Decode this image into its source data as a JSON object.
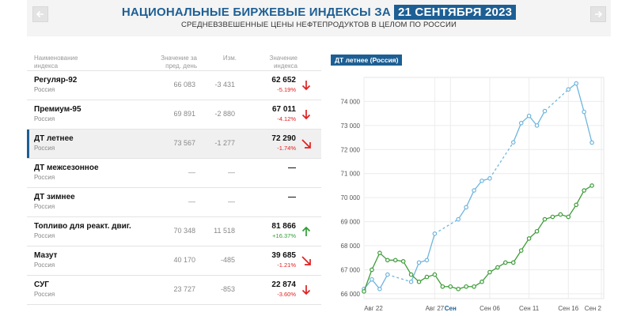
{
  "header": {
    "title": "НАЦИОНАЛЬНЫЕ БИРЖЕВЫЕ ИНДЕКСЫ ЗА",
    "date": "21 СЕНТЯБРЯ 2023",
    "subtitle": "СРЕДНЕВЗВЕШЕННЫЕ ЦЕНЫ НЕФТЕПРОДУКТОВ В ЦЕЛОМ ПО РОССИИ"
  },
  "table": {
    "headers": {
      "name_line1": "Наименование",
      "name_line2": "индекса",
      "prev_line1": "Значение за",
      "prev_line2": "пред. день",
      "chg": "Изм.",
      "val_line1": "Значение",
      "val_line2": "индекса"
    },
    "rows": [
      {
        "name": "Регуляр-92",
        "region": "Россия",
        "prev": "66 083",
        "chg": "-3 431",
        "value": "62 652",
        "pct": "-5.19%",
        "dir": "down",
        "arrow": "arrow-down-icon",
        "active": false
      },
      {
        "name": "Премиум-95",
        "region": "Россия",
        "prev": "69 891",
        "chg": "-2 880",
        "value": "67 011",
        "pct": "-4.12%",
        "dir": "down",
        "arrow": "arrow-down-icon",
        "active": false
      },
      {
        "name": "ДТ летнее",
        "region": "Россия",
        "prev": "73 567",
        "chg": "-1 277",
        "value": "72 290",
        "pct": "-1.74%",
        "dir": "down-right",
        "arrow": "arrow-down-right-icon",
        "active": true
      },
      {
        "name": "ДТ межсезонное",
        "region": "Россия",
        "prev": "—",
        "chg": "—",
        "value": "—",
        "pct": "",
        "dir": "none",
        "arrow": "",
        "active": false
      },
      {
        "name": "ДТ зимнее",
        "region": "Россия",
        "prev": "—",
        "chg": "—",
        "value": "—",
        "pct": "",
        "dir": "none",
        "arrow": "",
        "active": false
      },
      {
        "name": "Топливо для реакт. двиг.",
        "region": "Россия",
        "prev": "70 348",
        "chg": "11 518",
        "value": "81 866",
        "pct": "+16.37%",
        "dir": "up",
        "arrow": "arrow-up-icon",
        "active": false
      },
      {
        "name": "Мазут",
        "region": "Россия",
        "prev": "40 170",
        "chg": "-485",
        "value": "39 685",
        "pct": "-1.21%",
        "dir": "down-right",
        "arrow": "arrow-down-right-icon",
        "active": false
      },
      {
        "name": "СУГ",
        "region": "Россия",
        "prev": "23 727",
        "chg": "-853",
        "value": "22 874",
        "pct": "-3.60%",
        "dir": "down",
        "arrow": "arrow-down-icon",
        "active": false
      }
    ]
  },
  "chart_data": {
    "type": "line",
    "title": "ДТ летнее (Россия)",
    "tag": "ДТ летнее (Россия)",
    "x_tick_labels": [
      "Авг 22",
      "Авг 27",
      "Сен",
      "Сен 06",
      "Сен 11",
      "Сен 16",
      "Сен 2"
    ],
    "y_ticks": [
      66000,
      67000,
      68000,
      69000,
      70000,
      71000,
      72000,
      73000,
      74000
    ],
    "y_tick_labels": [
      "66 000",
      "67 000",
      "68 000",
      "69 000",
      "70 000",
      "71 000",
      "72 000",
      "73 000",
      "74 000"
    ],
    "ylim": [
      65800,
      75000
    ],
    "xlim": [
      0,
      30.5
    ],
    "grid": true,
    "colors": {
      "blue": "#6fb5dd",
      "green": "#3e9c3a"
    },
    "series": [
      {
        "color": "blue",
        "points": [
          {
            "x": 0,
            "y": 66200
          },
          {
            "x": 1,
            "y": 66600
          },
          {
            "x": 2,
            "y": 66200
          },
          {
            "x": 3,
            "y": 66800
          },
          {
            "x": 6,
            "y": 66500
          },
          {
            "x": 7,
            "y": 67300
          },
          {
            "x": 8,
            "y": 67400
          },
          {
            "x": 9,
            "y": 68500
          },
          {
            "x": 12,
            "y": 69100
          },
          {
            "x": 13,
            "y": 69600
          },
          {
            "x": 14,
            "y": 70300
          },
          {
            "x": 15,
            "y": 70700
          },
          {
            "x": 16,
            "y": 70800
          },
          {
            "x": 19,
            "y": 72300
          },
          {
            "x": 20,
            "y": 73100
          },
          {
            "x": 21,
            "y": 73400
          },
          {
            "x": 22,
            "y": 73000
          },
          {
            "x": 23,
            "y": 73600
          },
          {
            "x": 26,
            "y": 74500
          },
          {
            "x": 27,
            "y": 74750
          },
          {
            "x": 28,
            "y": 73567
          },
          {
            "x": 29,
            "y": 72290
          }
        ],
        "dashed_segments": [
          [
            3,
            6
          ],
          [
            9,
            12
          ],
          [
            16,
            19
          ],
          [
            23,
            26
          ]
        ]
      },
      {
        "color": "green",
        "points": [
          {
            "x": 0,
            "y": 66100
          },
          {
            "x": 1,
            "y": 67000
          },
          {
            "x": 2,
            "y": 67700
          },
          {
            "x": 3,
            "y": 67400
          },
          {
            "x": 4,
            "y": 67400
          },
          {
            "x": 5,
            "y": 67350
          },
          {
            "x": 6,
            "y": 66800
          },
          {
            "x": 7,
            "y": 66500
          },
          {
            "x": 8,
            "y": 66700
          },
          {
            "x": 9,
            "y": 66800
          },
          {
            "x": 10,
            "y": 66300
          },
          {
            "x": 11,
            "y": 66300
          },
          {
            "x": 12,
            "y": 66200
          },
          {
            "x": 13,
            "y": 66300
          },
          {
            "x": 14,
            "y": 66300
          },
          {
            "x": 15,
            "y": 66500
          },
          {
            "x": 16,
            "y": 66900
          },
          {
            "x": 17,
            "y": 67100
          },
          {
            "x": 18,
            "y": 67300
          },
          {
            "x": 19,
            "y": 67300
          },
          {
            "x": 20,
            "y": 67800
          },
          {
            "x": 21,
            "y": 68300
          },
          {
            "x": 22,
            "y": 68600
          },
          {
            "x": 23,
            "y": 69100
          },
          {
            "x": 24,
            "y": 69200
          },
          {
            "x": 25,
            "y": 69300
          },
          {
            "x": 26,
            "y": 69200
          },
          {
            "x": 27,
            "y": 69700
          },
          {
            "x": 28,
            "y": 70300
          },
          {
            "x": 29,
            "y": 70500
          }
        ],
        "dashed_segments": [
          [
            26,
            29
          ]
        ]
      }
    ]
  }
}
